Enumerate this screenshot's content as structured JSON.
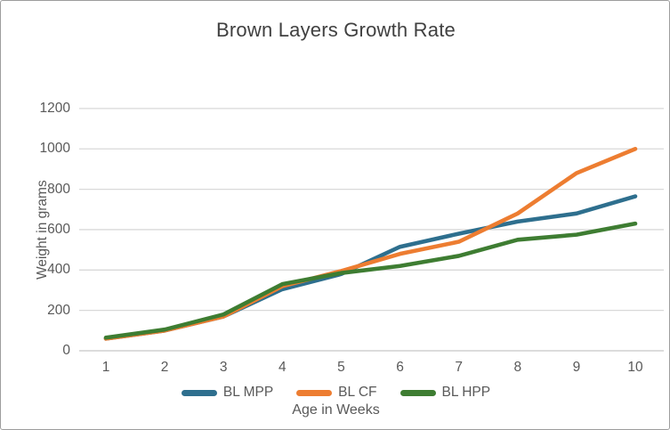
{
  "chart_data": {
    "type": "line",
    "title": "Brown Layers Growth Rate",
    "xlabel": "Age in Weeks",
    "ylabel": "Weight in grams",
    "categories": [
      "1",
      "2",
      "3",
      "4",
      "5",
      "6",
      "7",
      "8",
      "9",
      "10"
    ],
    "yticks": [
      "0",
      "200",
      "400",
      "600",
      "800",
      "1000",
      "1200"
    ],
    "ylim": [
      0,
      1200
    ],
    "grid": true,
    "legend_position": "bottom",
    "series": [
      {
        "name": "BL MPP",
        "color": "#2e6f8e",
        "values": [
          60,
          100,
          170,
          305,
          380,
          515,
          580,
          640,
          680,
          765
        ]
      },
      {
        "name": "BL CF",
        "color": "#ed7d31",
        "values": [
          60,
          100,
          170,
          320,
          395,
          480,
          540,
          680,
          880,
          1000
        ]
      },
      {
        "name": "BL HPP",
        "color": "#3e7d32",
        "values": [
          65,
          105,
          180,
          330,
          385,
          420,
          470,
          550,
          575,
          630
        ]
      }
    ]
  }
}
